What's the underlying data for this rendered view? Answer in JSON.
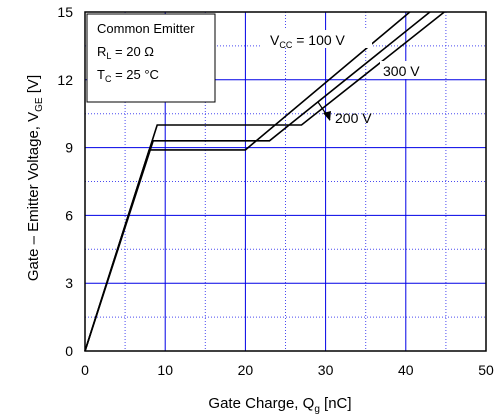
{
  "chart_data": {
    "type": "line",
    "xlabel": "Gate Charge, Q",
    "xlabel_sub": "g",
    "xlabel_unit": "[nC]",
    "ylabel": "Gate – Emitter Voltage, V",
    "ylabel_sub": "GE",
    "ylabel_unit": "[V]",
    "xlim": [
      0,
      50
    ],
    "ylim": [
      0,
      15
    ],
    "xticks": [
      0,
      10,
      20,
      30,
      40,
      50
    ],
    "yticks": [
      0,
      3,
      6,
      9,
      12,
      15
    ],
    "grid": true,
    "conditions": {
      "line1": "Common Emitter",
      "line2_main": "R",
      "line2_sub": "L",
      "line2_rest": "= 20 Ω",
      "line3_main": "T",
      "line3_sub": "C",
      "line3_rest": "= 25 °C"
    },
    "series": [
      {
        "name": "100 V",
        "points": [
          [
            0,
            0
          ],
          [
            8.0,
            8.9
          ],
          [
            20.0,
            8.9
          ],
          [
            40.5,
            15
          ]
        ]
      },
      {
        "name": "200 V",
        "points": [
          [
            0,
            0
          ],
          [
            8.5,
            9.3
          ],
          [
            23.0,
            9.3
          ],
          [
            43.0,
            15
          ]
        ]
      },
      {
        "name": "300 V",
        "points": [
          [
            0,
            0
          ],
          [
            9.0,
            10.0
          ],
          [
            27.0,
            10.0
          ],
          [
            44.8,
            15
          ]
        ]
      }
    ],
    "annotations": {
      "vcc_main": "V",
      "vcc_sub": "CC",
      "vcc_rest": "= 100 V",
      "label_300": "300 V",
      "label_200": "200 V"
    }
  }
}
